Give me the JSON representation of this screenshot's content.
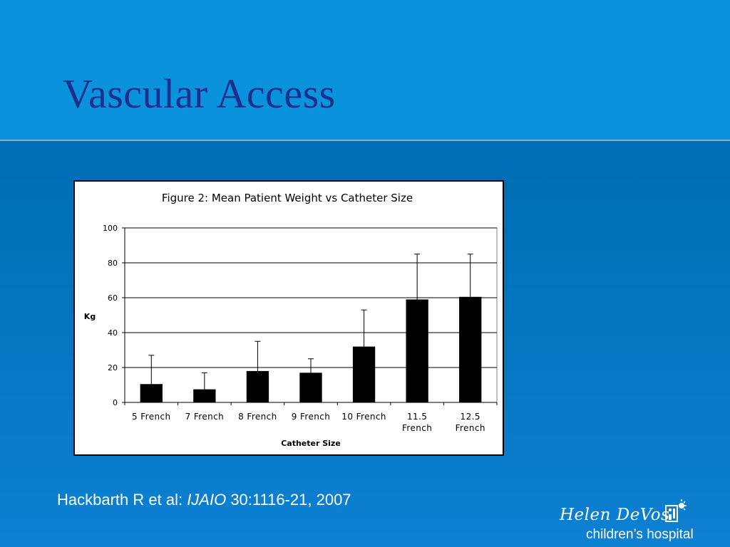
{
  "slide": {
    "title": "Vascular Access",
    "citation_prefix": "Hackbarth R et al: ",
    "citation_journal": "IJAIO",
    "citation_suffix": " 30:1116-21, 2007",
    "logo_name": "Helen DeVos",
    "logo_sub": "children’s hospital"
  },
  "chart_data": {
    "type": "bar",
    "title": "Figure 2:  Mean Patient Weight vs Catheter Size",
    "xlabel": "Catheter Size",
    "ylabel": "Kg",
    "ylim": [
      0,
      100
    ],
    "yticks": [
      0,
      20,
      40,
      60,
      80,
      100
    ],
    "grid": true,
    "categories": [
      [
        "5 French"
      ],
      [
        "7 French"
      ],
      [
        "8 French"
      ],
      [
        "9 French"
      ],
      [
        "10 French"
      ],
      [
        "11.5",
        "French"
      ],
      [
        "12.5",
        "French"
      ]
    ],
    "values": [
      10.5,
      7.5,
      18,
      17,
      32,
      59,
      60.5
    ],
    "error_upper": [
      27,
      17,
      35,
      25,
      53,
      85,
      85
    ],
    "bar_color": "#000000"
  }
}
